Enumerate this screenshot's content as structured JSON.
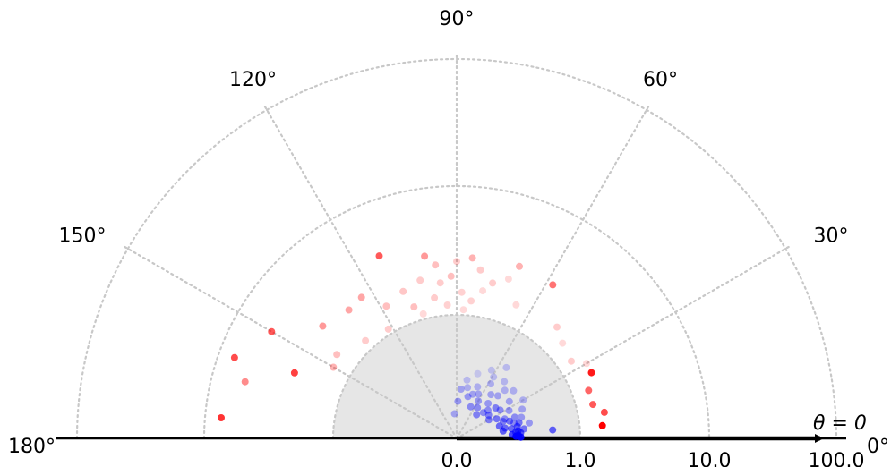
{
  "chart_data": {
    "type": "scatter",
    "projection": "polar-half",
    "radial_scale": "symlog",
    "angle_tick_labels": [
      "0°",
      "30°",
      "60°",
      "90°",
      "120°",
      "150°",
      "180°"
    ],
    "radial_tick_labels": [
      "0.0",
      "1.0",
      "10.0",
      "100.0"
    ],
    "annotation": "θ = 0",
    "shaded_region": {
      "theta_range_deg": [
        0,
        180
      ],
      "radius_range": [
        0.0,
        1.0
      ],
      "color": "#e6e6e6"
    },
    "grid": true,
    "series": [
      {
        "color": "#0000ff",
        "points": [
          {
            "theta": 72,
            "r": 0.55,
            "alpha": 0.15
          },
          {
            "theta": 63,
            "r": 0.62,
            "alpha": 0.18
          },
          {
            "theta": 55,
            "r": 0.7,
            "alpha": 0.2
          },
          {
            "theta": 80,
            "r": 0.48,
            "alpha": 0.2
          },
          {
            "theta": 68,
            "r": 0.45,
            "alpha": 0.25
          },
          {
            "theta": 58,
            "r": 0.52,
            "alpha": 0.25
          },
          {
            "theta": 50,
            "r": 0.6,
            "alpha": 0.22
          },
          {
            "theta": 85,
            "r": 0.4,
            "alpha": 0.3
          },
          {
            "theta": 64,
            "r": 0.4,
            "alpha": 0.3
          },
          {
            "theta": 52,
            "r": 0.45,
            "alpha": 0.3
          },
          {
            "theta": 45,
            "r": 0.55,
            "alpha": 0.25
          },
          {
            "theta": 75,
            "r": 0.35,
            "alpha": 0.35
          },
          {
            "theta": 40,
            "r": 0.6,
            "alpha": 0.25
          },
          {
            "theta": 60,
            "r": 0.35,
            "alpha": 0.35
          },
          {
            "theta": 48,
            "r": 0.38,
            "alpha": 0.35
          },
          {
            "theta": 35,
            "r": 0.52,
            "alpha": 0.3
          },
          {
            "theta": 30,
            "r": 0.62,
            "alpha": 0.25
          },
          {
            "theta": 56,
            "r": 0.3,
            "alpha": 0.4
          },
          {
            "theta": 42,
            "r": 0.34,
            "alpha": 0.4
          },
          {
            "theta": 28,
            "r": 0.48,
            "alpha": 0.35
          },
          {
            "theta": 24,
            "r": 0.58,
            "alpha": 0.3
          },
          {
            "theta": 66,
            "r": 0.28,
            "alpha": 0.4
          },
          {
            "theta": 36,
            "r": 0.32,
            "alpha": 0.45
          },
          {
            "theta": 22,
            "r": 0.42,
            "alpha": 0.4
          },
          {
            "theta": 18,
            "r": 0.55,
            "alpha": 0.35
          },
          {
            "theta": 50,
            "r": 0.25,
            "alpha": 0.45
          },
          {
            "theta": 30,
            "r": 0.3,
            "alpha": 0.45
          },
          {
            "theta": 20,
            "r": 0.4,
            "alpha": 0.45
          },
          {
            "theta": 15,
            "r": 0.48,
            "alpha": 0.4
          },
          {
            "theta": 12,
            "r": 0.6,
            "alpha": 0.35
          },
          {
            "theta": 38,
            "r": 0.4,
            "alpha": 0.45
          },
          {
            "theta": 26,
            "r": 0.36,
            "alpha": 0.5
          },
          {
            "theta": 18,
            "r": 0.45,
            "alpha": 0.5
          },
          {
            "theta": 14,
            "r": 0.52,
            "alpha": 0.5
          },
          {
            "theta": 10,
            "r": 0.45,
            "alpha": 0.55
          },
          {
            "theta": 8,
            "r": 0.55,
            "alpha": 0.5
          },
          {
            "theta": 12,
            "r": 0.4,
            "alpha": 0.55
          },
          {
            "theta": 6,
            "r": 0.48,
            "alpha": 0.6
          },
          {
            "theta": 5,
            "r": 0.52,
            "alpha": 0.65
          },
          {
            "theta": 16,
            "r": 0.36,
            "alpha": 0.55
          },
          {
            "theta": 9,
            "r": 0.38,
            "alpha": 0.6
          },
          {
            "theta": 4,
            "r": 0.45,
            "alpha": 0.7
          },
          {
            "theta": 3,
            "r": 0.5,
            "alpha": 0.75
          },
          {
            "theta": 2,
            "r": 0.5,
            "alpha": 0.85
          },
          {
            "theta": 7,
            "r": 0.5,
            "alpha": 0.7
          },
          {
            "theta": 11,
            "r": 0.5,
            "alpha": 0.6
          },
          {
            "theta": 20,
            "r": 0.5,
            "alpha": 0.4
          },
          {
            "theta": 46,
            "r": 0.48,
            "alpha": 0.3
          },
          {
            "theta": 70,
            "r": 0.38,
            "alpha": 0.3
          },
          {
            "theta": 78,
            "r": 0.42,
            "alpha": 0.25
          },
          {
            "theta": 33,
            "r": 0.42,
            "alpha": 0.4
          },
          {
            "theta": 44,
            "r": 0.3,
            "alpha": 0.4
          },
          {
            "theta": 59,
            "r": 0.58,
            "alpha": 0.2
          },
          {
            "theta": 88,
            "r": 0.3,
            "alpha": 0.35
          },
          {
            "theta": 95,
            "r": 0.2,
            "alpha": 0.3
          },
          {
            "theta": 5,
            "r": 0.78,
            "alpha": 0.6
          },
          {
            "theta": 2,
            "r": 0.48,
            "alpha": 0.95
          },
          {
            "theta": 1,
            "r": 0.52,
            "alpha": 0.9
          }
        ]
      },
      {
        "color": "#ff0000",
        "points": [
          {
            "theta": 175,
            "r": 7.5,
            "alpha": 0.8
          },
          {
            "theta": 160,
            "r": 7.5,
            "alpha": 0.7
          },
          {
            "theta": 165,
            "r": 5.5,
            "alpha": 0.45
          },
          {
            "theta": 150,
            "r": 5.0,
            "alpha": 0.65
          },
          {
            "theta": 158,
            "r": 2.5,
            "alpha": 0.75
          },
          {
            "theta": 140,
            "r": 2.5,
            "alpha": 0.4
          },
          {
            "theta": 150,
            "r": 1.4,
            "alpha": 0.3
          },
          {
            "theta": 130,
            "r": 2.2,
            "alpha": 0.35
          },
          {
            "theta": 113,
            "r": 3.8,
            "alpha": 0.65
          },
          {
            "theta": 100,
            "r": 3.0,
            "alpha": 0.4
          },
          {
            "theta": 97,
            "r": 2.5,
            "alpha": 0.25
          },
          {
            "theta": 103,
            "r": 2.0,
            "alpha": 0.2
          },
          {
            "theta": 108,
            "r": 1.3,
            "alpha": 0.25
          },
          {
            "theta": 96,
            "r": 1.8,
            "alpha": 0.2
          },
          {
            "theta": 90,
            "r": 2.6,
            "alpha": 0.2
          },
          {
            "theta": 85,
            "r": 2.8,
            "alpha": 0.3
          },
          {
            "theta": 88,
            "r": 1.5,
            "alpha": 0.18
          },
          {
            "theta": 80,
            "r": 1.6,
            "alpha": 0.15
          },
          {
            "theta": 72,
            "r": 2.2,
            "alpha": 0.15
          },
          {
            "theta": 77,
            "r": 1.9,
            "alpha": 0.2
          },
          {
            "theta": 84,
            "r": 1.3,
            "alpha": 0.18
          },
          {
            "theta": 92,
            "r": 2.0,
            "alpha": 0.25
          },
          {
            "theta": 99,
            "r": 1.4,
            "alpha": 0.2
          },
          {
            "theta": 118,
            "r": 1.6,
            "alpha": 0.25
          },
          {
            "theta": 124,
            "r": 2.3,
            "alpha": 0.35
          },
          {
            "theta": 70,
            "r": 2.9,
            "alpha": 0.3
          },
          {
            "theta": 58,
            "r": 2.8,
            "alpha": 0.55
          },
          {
            "theta": 48,
            "r": 1.6,
            "alpha": 0.2
          },
          {
            "theta": 42,
            "r": 1.4,
            "alpha": 0.15
          },
          {
            "theta": 34,
            "r": 1.3,
            "alpha": 0.2
          },
          {
            "theta": 30,
            "r": 1.6,
            "alpha": 0.15
          },
          {
            "theta": 82,
            "r": 2.3,
            "alpha": 0.2
          },
          {
            "theta": 87,
            "r": 1.1,
            "alpha": 0.15
          },
          {
            "theta": 105,
            "r": 1.1,
            "alpha": 0.15
          },
          {
            "theta": 133,
            "r": 1.2,
            "alpha": 0.2
          },
          {
            "theta": 145,
            "r": 1.5,
            "alpha": 0.25
          },
          {
            "theta": 122,
            "r": 1.1,
            "alpha": 0.2
          },
          {
            "theta": 94,
            "r": 1.2,
            "alpha": 0.18
          },
          {
            "theta": 66,
            "r": 1.5,
            "alpha": 0.15
          },
          {
            "theta": 110,
            "r": 1.8,
            "alpha": 0.22
          },
          {
            "theta": 20,
            "r": 1.35,
            "alpha": 0.6
          },
          {
            "theta": 14,
            "r": 1.35,
            "alpha": 0.65
          },
          {
            "theta": 26,
            "r": 1.6,
            "alpha": 0.9
          },
          {
            "theta": 10,
            "r": 1.6,
            "alpha": 0.7
          },
          {
            "theta": 5,
            "r": 1.5,
            "alpha": 1.0
          }
        ]
      }
    ]
  }
}
